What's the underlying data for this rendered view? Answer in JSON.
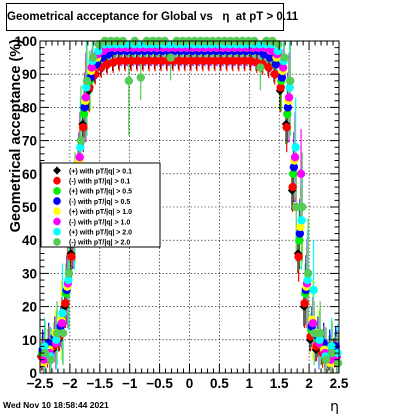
{
  "title": "Geometrical acceptance for Global vs   η  at pT > 0.11",
  "timestamp": "Wed Nov 10 18:58:44 2021",
  "chart_data": {
    "type": "scatter",
    "xlabel": "η",
    "ylabel": "Geometrical acceptance (%)",
    "xlim": [
      -2.5,
      2.5
    ],
    "ylim": [
      0,
      100
    ],
    "x_ticks": [
      "−2.5",
      "−2",
      "−1.5",
      "−1",
      "−0.5",
      "0",
      "0.5",
      "1",
      "1.5",
      "2",
      "2.5"
    ],
    "y_ticks": [
      "0",
      "10",
      "20",
      "30",
      "40",
      "50",
      "60",
      "70",
      "80",
      "90",
      "100"
    ],
    "grid": true,
    "legend_position": "left-middle",
    "series": [
      {
        "name": "(+) with pT/|q| > 0.1",
        "color": "#000000",
        "marker": "diamond",
        "x": [
          -2.45,
          -2.35,
          -2.25,
          -2.15,
          -2.05,
          -1.95,
          -1.85,
          -1.75,
          -1.65,
          -1.55,
          -1.45,
          -1.35,
          -1.25,
          -1.15,
          -1.05,
          -0.95,
          -0.85,
          -0.75,
          -0.65,
          -0.55,
          -0.45,
          -0.35,
          -0.25,
          -0.15,
          -0.05,
          0.05,
          0.15,
          0.25,
          0.35,
          0.45,
          0.55,
          0.65,
          0.75,
          0.85,
          0.95,
          1.05,
          1.15,
          1.25,
          1.35,
          1.45,
          1.55,
          1.65,
          1.75,
          1.85,
          1.95,
          2.05,
          2.15,
          2.25,
          2.35,
          2.45
        ],
        "y": [
          5,
          6,
          7,
          10,
          20,
          36,
          55,
          75,
          85,
          90,
          92,
          93,
          93.5,
          94,
          94,
          94,
          94,
          94,
          94,
          94,
          94,
          94,
          94,
          94,
          94,
          94,
          94,
          94,
          94,
          94,
          94,
          94,
          94,
          94,
          94,
          94,
          93.5,
          93,
          92,
          90,
          85,
          75,
          55,
          36,
          20,
          10,
          7,
          6,
          5,
          7
        ]
      },
      {
        "name": "(-) with pT/|q| > 0.1",
        "color": "#ff0000",
        "marker": "circle",
        "x": [
          -2.45,
          -2.35,
          -2.25,
          -2.15,
          -2.05,
          -1.95,
          -1.85,
          -1.75,
          -1.65,
          -1.55,
          -1.45,
          -1.35,
          -1.25,
          -1.15,
          -1.05,
          -0.95,
          -0.85,
          -0.75,
          -0.65,
          -0.55,
          -0.45,
          -0.35,
          -0.25,
          -0.15,
          -0.05,
          0.05,
          0.15,
          0.25,
          0.35,
          0.45,
          0.55,
          0.65,
          0.75,
          0.85,
          0.95,
          1.05,
          1.15,
          1.25,
          1.35,
          1.45,
          1.55,
          1.65,
          1.75,
          1.85,
          1.95,
          2.05,
          2.15,
          2.25,
          2.35,
          2.45
        ],
        "y": [
          5,
          6,
          8,
          11,
          21,
          35,
          56,
          74,
          86,
          90,
          92,
          93,
          93.5,
          94,
          94,
          94,
          94,
          94,
          94,
          94,
          94,
          94,
          94,
          94,
          94,
          94,
          94,
          94,
          94,
          94,
          94,
          94,
          94,
          94,
          94,
          94,
          93.5,
          93,
          92,
          90,
          86,
          74,
          56,
          35,
          21,
          11,
          8,
          6,
          5,
          6
        ]
      },
      {
        "name": "(+) with pT/|q| > 0.5",
        "color": "#00ee00",
        "marker": "circle",
        "x": [
          -2.45,
          -2.35,
          -2.25,
          -2.15,
          -2.05,
          -1.95,
          -1.85,
          -1.75,
          -1.65,
          -1.55,
          -1.45,
          -1.35,
          -1.25,
          -1.15,
          -1.05,
          -0.95,
          -0.85,
          -0.75,
          -0.65,
          -0.55,
          -0.45,
          -0.35,
          -0.25,
          -0.15,
          -0.05,
          0.05,
          0.15,
          0.25,
          0.35,
          0.45,
          0.55,
          0.65,
          0.75,
          0.85,
          0.95,
          1.05,
          1.15,
          1.25,
          1.35,
          1.45,
          1.55,
          1.65,
          1.75,
          1.85,
          1.95,
          2.05,
          2.15,
          2.25,
          2.35,
          2.45
        ],
        "y": [
          6,
          8,
          10,
          13,
          24,
          40,
          60,
          78,
          88,
          93,
          95,
          96,
          97,
          97,
          97,
          97,
          97,
          97,
          97,
          97,
          97,
          97,
          97,
          97,
          97,
          97,
          97,
          97,
          97,
          97,
          97,
          97,
          97,
          97,
          97,
          97,
          97,
          96,
          95,
          93,
          88,
          78,
          60,
          40,
          24,
          13,
          10,
          8,
          6,
          7
        ]
      },
      {
        "name": "(-) with pT/|q| > 0.5",
        "color": "#0000ff",
        "marker": "circle",
        "x": [
          -2.45,
          -2.35,
          -2.25,
          -2.15,
          -2.05,
          -1.95,
          -1.85,
          -1.75,
          -1.65,
          -1.55,
          -1.45,
          -1.35,
          -1.25,
          -1.15,
          -1.05,
          -0.95,
          -0.85,
          -0.75,
          -0.65,
          -0.55,
          -0.45,
          -0.35,
          -0.25,
          -0.15,
          -0.05,
          0.05,
          0.15,
          0.25,
          0.35,
          0.45,
          0.55,
          0.65,
          0.75,
          0.85,
          0.95,
          1.05,
          1.15,
          1.25,
          1.35,
          1.45,
          1.55,
          1.65,
          1.75,
          1.85,
          1.95,
          2.05,
          2.15,
          2.25,
          2.35,
          2.45
        ],
        "y": [
          7,
          9,
          11,
          14,
          25,
          42,
          62,
          80,
          89,
          93,
          95,
          96,
          97,
          97,
          97,
          97,
          97,
          97,
          97,
          97,
          97,
          97,
          97,
          97,
          97,
          97,
          97,
          97,
          97,
          97,
          97,
          97,
          97,
          97,
          97,
          97,
          97,
          96,
          95,
          93,
          89,
          80,
          62,
          42,
          25,
          14,
          11,
          9,
          7,
          8
        ]
      },
      {
        "name": "(+) with pT/|q| > 1.0",
        "color": "#ffff00",
        "marker": "circle",
        "x": [
          -2.45,
          -2.35,
          -2.25,
          -2.15,
          -2.05,
          -1.95,
          -1.85,
          -1.75,
          -1.65,
          -1.55,
          -1.45,
          -1.35,
          -1.25,
          -1.15,
          -1.05,
          -0.95,
          -0.85,
          -0.75,
          -0.65,
          -0.55,
          -0.45,
          -0.35,
          -0.25,
          -0.15,
          -0.05,
          0.05,
          0.15,
          0.25,
          0.35,
          0.45,
          0.55,
          0.65,
          0.75,
          0.85,
          0.95,
          1.05,
          1.15,
          1.25,
          1.35,
          1.45,
          1.55,
          1.65,
          1.75,
          1.85,
          1.95,
          2.05,
          2.15,
          2.25,
          2.35,
          2.45
        ],
        "y": [
          3,
          7,
          12,
          16,
          26,
          44,
          64,
          82,
          91,
          95,
          97,
          98,
          98,
          98,
          98,
          98,
          98,
          98,
          98,
          98,
          98,
          98,
          98,
          98,
          98,
          98,
          98,
          98,
          98,
          98,
          98,
          98,
          98,
          98,
          98,
          98,
          98,
          98,
          97,
          95,
          91,
          82,
          64,
          44,
          26,
          16,
          12,
          7,
          3,
          4
        ]
      },
      {
        "name": "(-) with pT/|q| > 1.0",
        "color": "#ff00ff",
        "marker": "circle",
        "x": [
          -2.45,
          -2.35,
          -2.25,
          -2.15,
          -2.05,
          -1.95,
          -1.85,
          -1.75,
          -1.65,
          -1.55,
          -1.45,
          -1.35,
          -1.25,
          -1.15,
          -1.05,
          -0.95,
          -0.85,
          -0.75,
          -0.65,
          -0.55,
          -0.45,
          -0.35,
          -0.25,
          -0.15,
          -0.05,
          0.05,
          0.15,
          0.25,
          0.35,
          0.45,
          0.55,
          0.65,
          0.75,
          0.85,
          0.95,
          1.05,
          1.15,
          1.25,
          1.35,
          1.45,
          1.55,
          1.65,
          1.75,
          1.85,
          1.95,
          2.05,
          2.15,
          2.25,
          2.35,
          2.45
        ],
        "y": [
          4,
          6,
          9,
          15,
          27,
          45,
          65,
          83,
          92,
          96,
          97,
          98,
          98,
          98,
          98,
          98,
          98,
          98,
          98,
          98,
          98,
          98,
          98,
          98,
          98,
          98,
          98,
          98,
          98,
          98,
          98,
          98,
          98,
          98,
          98,
          98,
          98,
          98,
          97,
          96,
          92,
          83,
          65,
          60,
          27,
          15,
          9,
          6,
          4,
          5
        ]
      },
      {
        "name": "(+) with pT/|q| > 2.0",
        "color": "#00ffff",
        "marker": "circle",
        "x": [
          -2.45,
          -2.35,
          -2.25,
          -2.15,
          -2.05,
          -1.95,
          -1.85,
          -1.75,
          -1.65,
          -1.55,
          -1.45,
          -1.35,
          -1.25,
          -1.15,
          -1.05,
          -0.95,
          -0.85,
          -0.75,
          -0.65,
          -0.55,
          -0.45,
          -0.35,
          -0.25,
          -0.15,
          -0.05,
          0.05,
          0.15,
          0.25,
          0.35,
          0.45,
          0.55,
          0.65,
          0.75,
          0.85,
          0.95,
          1.05,
          1.15,
          1.25,
          1.35,
          1.45,
          1.55,
          1.65,
          1.75,
          1.85,
          1.95,
          2.05,
          2.15,
          2.25,
          2.35,
          2.45
        ],
        "y": [
          8,
          5,
          10,
          18,
          28,
          46,
          68,
          86,
          94,
          97,
          99,
          99,
          99,
          99,
          99,
          99,
          99,
          99,
          99,
          99,
          99,
          99,
          99,
          99,
          99,
          99,
          99,
          99,
          99,
          99,
          99,
          99,
          99,
          99,
          99,
          99,
          99,
          99,
          99,
          97,
          94,
          86,
          68,
          46,
          28,
          25,
          10,
          5,
          8,
          6
        ]
      },
      {
        "name": "(-) with pT/|q| > 2.0",
        "color": "#55cc55",
        "marker": "circle",
        "x": [
          -2.45,
          -2.35,
          -2.25,
          -2.15,
          -2.05,
          -1.95,
          -1.85,
          -1.75,
          -1.65,
          -1.55,
          -1.45,
          -1.35,
          -1.25,
          -1.15,
          -1.05,
          -0.95,
          -0.85,
          -0.75,
          -0.65,
          -0.55,
          -0.45,
          -0.35,
          -0.25,
          -0.15,
          -0.05,
          0.05,
          0.15,
          0.25,
          0.35,
          0.45,
          0.55,
          0.65,
          0.75,
          0.85,
          0.95,
          1.05,
          1.15,
          1.25,
          1.35,
          1.45,
          1.55,
          1.65,
          1.75,
          1.85,
          1.95,
          2.05,
          2.15,
          2.25,
          2.35,
          2.45
        ],
        "y": [
          6,
          4,
          12,
          12,
          30,
          50,
          70,
          88,
          95,
          99,
          100,
          100,
          100,
          100,
          88,
          100,
          89,
          100,
          100,
          100,
          100,
          95,
          100,
          100,
          100,
          100,
          100,
          100,
          100,
          100,
          100,
          100,
          100,
          100,
          100,
          100,
          92,
          100,
          100,
          99,
          95,
          88,
          50,
          50,
          30,
          12,
          12,
          4,
          6,
          3
        ]
      }
    ]
  }
}
